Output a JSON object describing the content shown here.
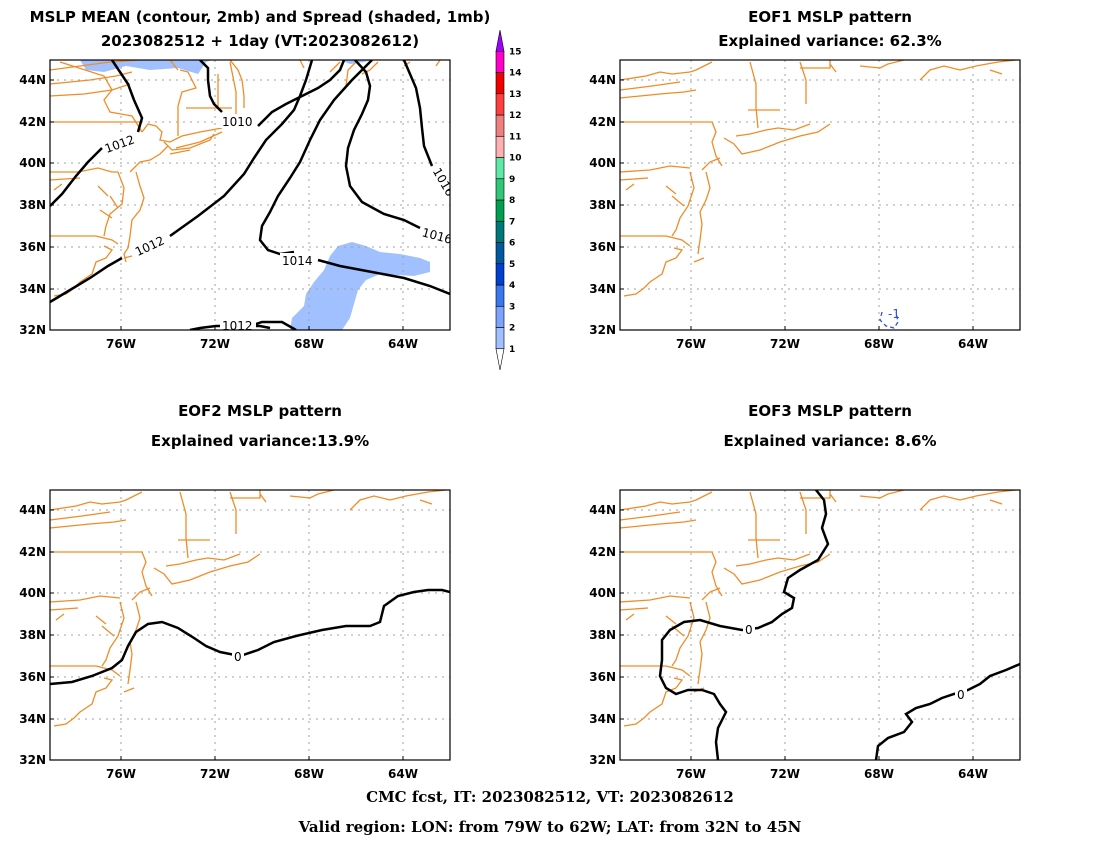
{
  "panels": [
    {
      "id": "mean",
      "title_lines": [
        "MSLP MEAN (contour, 2mb) and Spread (shaded, 1mb)",
        "2023082512 + 1day (VT:2023082612)"
      ]
    },
    {
      "id": "eof1",
      "title_lines": [
        "EOF1 MSLP pattern",
        "Explained variance: 62.3%"
      ]
    },
    {
      "id": "eof2",
      "title_lines": [
        "EOF2 MSLP pattern",
        "Explained variance:13.9%"
      ]
    },
    {
      "id": "eof3",
      "title_lines": [
        "EOF3 MSLP pattern",
        "Explained variance: 8.6%"
      ]
    }
  ],
  "axes": {
    "lat_labels": [
      "44N",
      "42N",
      "40N",
      "38N",
      "36N",
      "34N",
      "32N"
    ],
    "lon_labels": [
      "76W",
      "72W",
      "68W",
      "64W"
    ]
  },
  "contour_labels": {
    "mean": [
      "1010",
      "1012",
      "1012",
      "1014",
      "1016",
      "1012",
      "1016"
    ],
    "eof1": [
      "-1"
    ],
    "eof2": [
      "0"
    ],
    "eof3": [
      "0",
      "0"
    ]
  },
  "colorbar": {
    "labels": [
      "1",
      "2",
      "3",
      "4",
      "5",
      "6",
      "7",
      "8",
      "9",
      "10",
      "11",
      "12",
      "13",
      "14",
      "15"
    ],
    "colors": [
      "#c6dbff",
      "#a0c0ff",
      "#7ba4ff",
      "#3a78f0",
      "#0040d0",
      "#005aa0",
      "#007878",
      "#00a050",
      "#30c878",
      "#60e8a8",
      "#ffb0b0",
      "#f08080",
      "#ff4040",
      "#f00000",
      "#ff00c8",
      "#a000ff"
    ]
  },
  "colors": {
    "coast": "#f08c28",
    "contour": "#000000",
    "spread": "#a0c0ff",
    "grid": "#a0a0a0",
    "neg_contour": "#3050e0"
  },
  "footer": {
    "line1": "CMC fcst, IT: 2023082512, VT: 2023082612",
    "line2": "Valid region: LON: from 79W to 62W; LAT: from 32N to 45N"
  }
}
